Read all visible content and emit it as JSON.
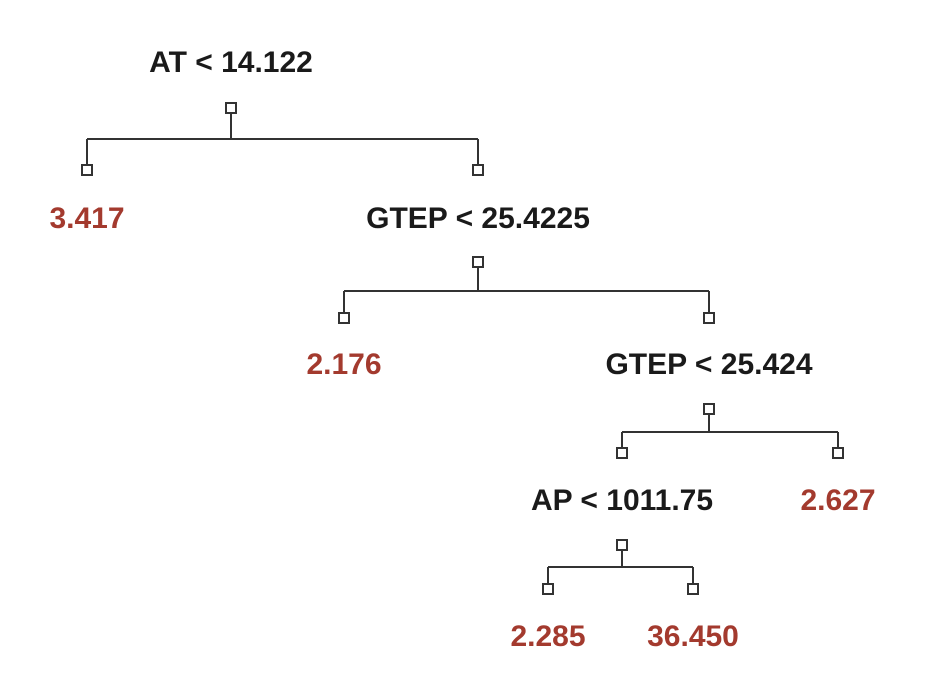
{
  "colors": {
    "leaf_value": "#a33a2e",
    "split_text": "#1a1a1a",
    "edge": "#333333"
  },
  "tree": {
    "root": {
      "split": "AT < 14.122",
      "left_leaf": "3.417",
      "right": {
        "split": "GTEP < 25.4225",
        "left_leaf": "2.176",
        "right": {
          "split": "GTEP < 25.424",
          "right_leaf": "2.627",
          "left": {
            "split": "AP < 1011.75",
            "left_leaf": "2.285",
            "right_leaf": "36.450"
          }
        }
      }
    }
  }
}
